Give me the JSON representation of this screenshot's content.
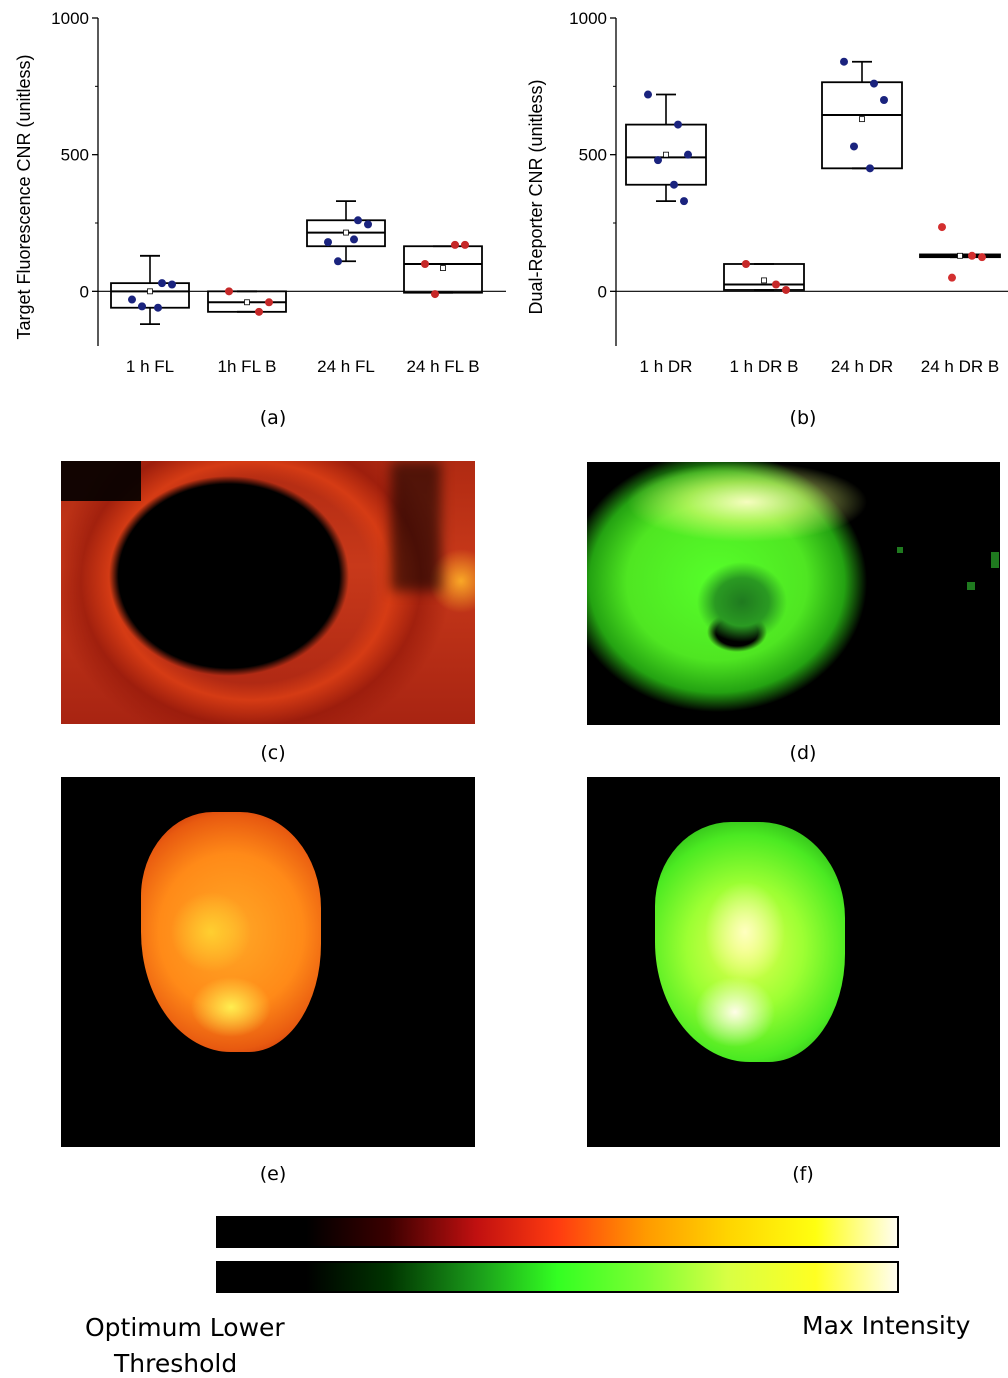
{
  "chart_data": [
    {
      "type": "box",
      "ylabel": "Target Fluorescence CNR (unitless)",
      "ylim": [
        -200,
        1000
      ],
      "yticks": [
        0,
        500,
        1000
      ],
      "categories": [
        "1 h FL",
        "1h FL B",
        "24 h FL",
        "24 h FL B"
      ],
      "boxes": [
        {
          "q1": -60,
          "median": 0,
          "q3": 30,
          "mean": 0,
          "whisker_low": -120,
          "whisker_high": 130,
          "points": [
            -30,
            30,
            25,
            -55,
            -60
          ],
          "point_color": "#1a237e"
        },
        {
          "q1": -75,
          "median": -40,
          "q3": 0,
          "mean": -40,
          "whisker_low": -75,
          "whisker_high": 0,
          "points": [
            0,
            -75,
            -40
          ],
          "point_color": "#c62828"
        },
        {
          "q1": 165,
          "median": 215,
          "q3": 260,
          "mean": 215,
          "whisker_low": 110,
          "whisker_high": 330,
          "points": [
            180,
            260,
            245,
            110,
            190
          ],
          "point_color": "#1a237e"
        },
        {
          "q1": -5,
          "median": 100,
          "q3": 165,
          "mean": 85,
          "whisker_low": -5,
          "whisker_high": 165,
          "points": [
            100,
            170,
            170,
            -10
          ],
          "point_color": "#c62828"
        }
      ]
    },
    {
      "type": "box",
      "ylabel": "Dual-Reporter CNR (unitless)",
      "ylim": [
        -200,
        1000
      ],
      "yticks": [
        0,
        500,
        1000
      ],
      "categories": [
        "1 h DR",
        "1 h DR B",
        "24 h DR",
        "24 h DR B"
      ],
      "boxes": [
        {
          "q1": 390,
          "median": 490,
          "q3": 610,
          "mean": 500,
          "whisker_low": 330,
          "whisker_high": 720,
          "points": [
            720,
            610,
            500,
            480,
            390,
            330
          ],
          "point_color": "#1a237e"
        },
        {
          "q1": 5,
          "median": 25,
          "q3": 100,
          "mean": 40,
          "whisker_low": 5,
          "whisker_high": 100,
          "points": [
            100,
            25,
            5
          ],
          "point_color": "#c62828"
        },
        {
          "q1": 450,
          "median": 645,
          "q3": 765,
          "mean": 630,
          "whisker_low": 450,
          "whisker_high": 840,
          "points": [
            840,
            760,
            700,
            530,
            450
          ],
          "point_color": "#1a237e"
        },
        {
          "q1": 125,
          "median": 130,
          "q3": 135,
          "mean": 130,
          "whisker_low": 125,
          "whisker_high": 135,
          "points": [
            235,
            130,
            125,
            50
          ],
          "point_color": "#d32f2f"
        }
      ]
    }
  ],
  "captions": {
    "a": "(a)",
    "b": "(b)",
    "c": "(c)",
    "d": "(d)",
    "e": "(e)",
    "f": "(f)"
  },
  "colorbar": {
    "left_label_line1": "Optimum Lower",
    "left_label_line2": "Threshold",
    "right_label": "Max Intensity"
  },
  "colors": {
    "red_map": [
      "#000000",
      "#000000",
      "#3a0000",
      "#c01010",
      "#ff3b10",
      "#ff9a00",
      "#ffd400",
      "#ffff10",
      "#fffdf0"
    ],
    "green_map": [
      "#000000",
      "#000000",
      "#003300",
      "#1a9a1a",
      "#33ff22",
      "#7dff33",
      "#d8ff44",
      "#ffff22",
      "#fffdf0"
    ]
  }
}
